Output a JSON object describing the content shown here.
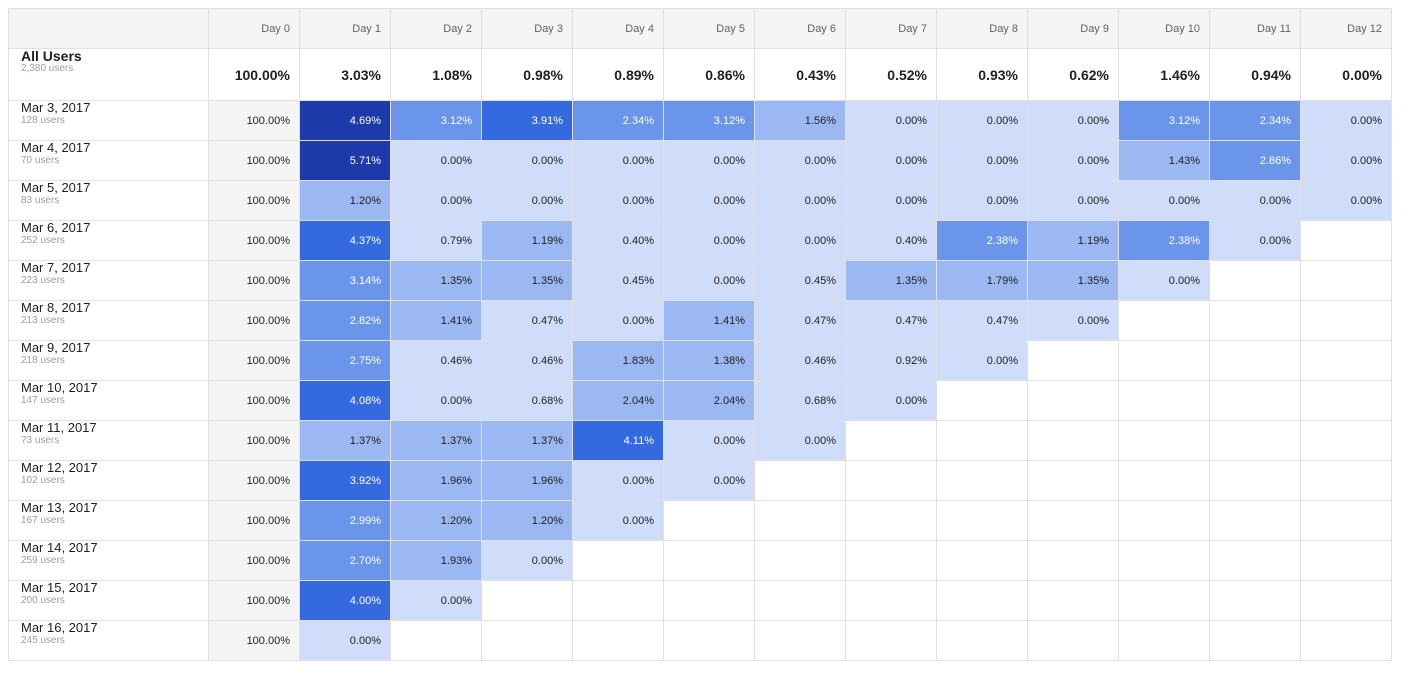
{
  "table": {
    "columns": [
      "Day 0",
      "Day 1",
      "Day 2",
      "Day 3",
      "Day 4",
      "Day 5",
      "Day 6",
      "Day 7",
      "Day 8",
      "Day 9",
      "Day 10",
      "Day 11",
      "Day 12"
    ],
    "summary": {
      "label": "All Users",
      "sublabel": "2,380 users",
      "cells": [
        "100.00%",
        "3.03%",
        "1.08%",
        "0.98%",
        "0.89%",
        "0.86%",
        "0.43%",
        "0.52%",
        "0.93%",
        "0.62%",
        "1.46%",
        "0.94%",
        "0.00%"
      ]
    },
    "rows": [
      {
        "label": "Mar 3, 2017",
        "sublabel": "128 users",
        "cells": [
          "100.00%",
          "4.69%",
          "3.12%",
          "3.91%",
          "2.34%",
          "3.12%",
          "1.56%",
          "0.00%",
          "0.00%",
          "0.00%",
          "3.12%",
          "2.34%",
          "0.00%"
        ]
      },
      {
        "label": "Mar 4, 2017",
        "sublabel": "70 users",
        "cells": [
          "100.00%",
          "5.71%",
          "0.00%",
          "0.00%",
          "0.00%",
          "0.00%",
          "0.00%",
          "0.00%",
          "0.00%",
          "0.00%",
          "1.43%",
          "2.86%",
          "0.00%"
        ]
      },
      {
        "label": "Mar 5, 2017",
        "sublabel": "83 users",
        "cells": [
          "100.00%",
          "1.20%",
          "0.00%",
          "0.00%",
          "0.00%",
          "0.00%",
          "0.00%",
          "0.00%",
          "0.00%",
          "0.00%",
          "0.00%",
          "0.00%",
          "0.00%"
        ]
      },
      {
        "label": "Mar 6, 2017",
        "sublabel": "252 users",
        "cells": [
          "100.00%",
          "4.37%",
          "0.79%",
          "1.19%",
          "0.40%",
          "0.00%",
          "0.00%",
          "0.40%",
          "2.38%",
          "1.19%",
          "2.38%",
          "0.00%"
        ]
      },
      {
        "label": "Mar 7, 2017",
        "sublabel": "223 users",
        "cells": [
          "100.00%",
          "3.14%",
          "1.35%",
          "1.35%",
          "0.45%",
          "0.00%",
          "0.45%",
          "1.35%",
          "1.79%",
          "1.35%",
          "0.00%"
        ]
      },
      {
        "label": "Mar 8, 2017",
        "sublabel": "213 users",
        "cells": [
          "100.00%",
          "2.82%",
          "1.41%",
          "0.47%",
          "0.00%",
          "1.41%",
          "0.47%",
          "0.47%",
          "0.47%",
          "0.00%"
        ]
      },
      {
        "label": "Mar 9, 2017",
        "sublabel": "218 users",
        "cells": [
          "100.00%",
          "2.75%",
          "0.46%",
          "0.46%",
          "1.83%",
          "1.38%",
          "0.46%",
          "0.92%",
          "0.00%"
        ]
      },
      {
        "label": "Mar 10, 2017",
        "sublabel": "147 users",
        "cells": [
          "100.00%",
          "4.08%",
          "0.00%",
          "0.68%",
          "2.04%",
          "2.04%",
          "0.68%",
          "0.00%"
        ]
      },
      {
        "label": "Mar 11, 2017",
        "sublabel": "73 users",
        "cells": [
          "100.00%",
          "1.37%",
          "1.37%",
          "1.37%",
          "4.11%",
          "0.00%",
          "0.00%"
        ]
      },
      {
        "label": "Mar 12, 2017",
        "sublabel": "102 users",
        "cells": [
          "100.00%",
          "3.92%",
          "1.96%",
          "1.96%",
          "0.00%",
          "0.00%"
        ]
      },
      {
        "label": "Mar 13, 2017",
        "sublabel": "167 users",
        "cells": [
          "100.00%",
          "2.99%",
          "1.20%",
          "1.20%",
          "0.00%"
        ]
      },
      {
        "label": "Mar 14, 2017",
        "sublabel": "259 users",
        "cells": [
          "100.00%",
          "2.70%",
          "1.93%",
          "0.00%"
        ]
      },
      {
        "label": "Mar 15, 2017",
        "sublabel": "200 users",
        "cells": [
          "100.00%",
          "4.00%",
          "0.00%"
        ]
      },
      {
        "label": "Mar 16, 2017",
        "sublabel": "245 users",
        "cells": [
          "100.00%",
          "0.00%"
        ]
      }
    ]
  }
}
